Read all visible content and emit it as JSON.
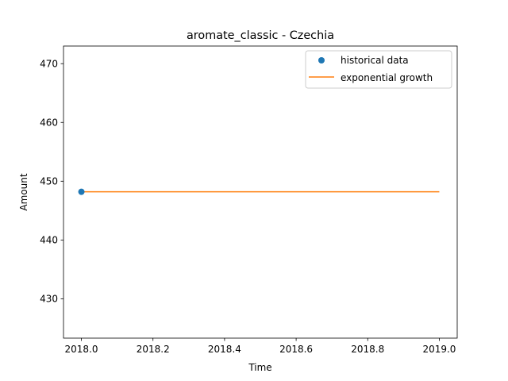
{
  "chart_data": {
    "type": "line",
    "title": "aromate_classic - Czechia",
    "xlabel": "Time",
    "ylabel": "Amount",
    "xlim": [
      2017.95,
      2019.05
    ],
    "ylim": [
      423.3,
      473.0
    ],
    "x_ticks": [
      2018.0,
      2018.2,
      2018.4,
      2018.6,
      2018.8,
      2019.0
    ],
    "x_tick_labels": [
      "2018.0",
      "2018.2",
      "2018.4",
      "2018.6",
      "2018.8",
      "2019.0"
    ],
    "y_ticks": [
      430,
      440,
      450,
      460,
      470
    ],
    "y_tick_labels": [
      "430",
      "440",
      "450",
      "460",
      "470"
    ],
    "grid": false,
    "legend_position": "top-right",
    "series": [
      {
        "name": "historical data",
        "type": "scatter",
        "color": "#1f77b4",
        "points": [
          {
            "x": 2018.0,
            "y": 448.2
          }
        ]
      },
      {
        "name": "exponential growth",
        "type": "line",
        "color": "#ff7f0e",
        "points": [
          {
            "x": 2018.0,
            "y": 448.2
          },
          {
            "x": 2019.0,
            "y": 448.2
          }
        ]
      }
    ]
  }
}
